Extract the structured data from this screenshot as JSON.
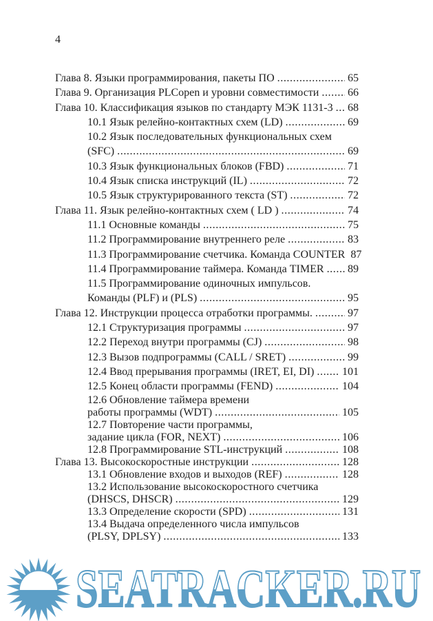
{
  "page": {
    "number": "4"
  },
  "toc": {
    "entries": [
      {
        "title": "Глава 8. Языки программирования, пакеты ПО",
        "page": "65",
        "level": 0
      },
      {
        "title": "Глава 9. Организация PLCopen и уровни совместимости",
        "page": "66",
        "level": 0
      },
      {
        "title": "Глава 10. Классификация языков по стандарту МЭК 1131-3",
        "page": "68",
        "level": 0
      },
      {
        "title": "10.1 Язык релейно-контактных схем (LD)",
        "page": "69",
        "level": 1
      },
      {
        "title": "10.2 Язык последовательных функциональных схем",
        "page": "",
        "level": 1
      },
      {
        "title": "(SFC)",
        "page": "69",
        "level": 1
      },
      {
        "title": "10.3 Язык функциональных блоков (FBD)",
        "page": "71",
        "level": 1
      },
      {
        "title": "10.4 Язык списка инструкций (IL)",
        "page": "72",
        "level": 1
      },
      {
        "title": "10.5 Язык структурированного текста (ST)",
        "page": "72",
        "level": 1
      },
      {
        "title": "Глава 11. Язык релейно-контактных схем ( LD )",
        "page": "74",
        "level": 0
      },
      {
        "title": "11.1 Основные команды",
        "page": "75",
        "level": 1
      },
      {
        "title": "11.2 Программирование внутреннего реле",
        "page": "83",
        "level": 1
      },
      {
        "title": "11.3 Программирование счетчика. Команда COUNTER",
        "page": "87",
        "level": 1
      },
      {
        "title": "11.4 Программирование таймера. Команда TIMER",
        "page": "89",
        "level": 1
      },
      {
        "title": "11.5 Программирование одиночных импульсов.",
        "page": "",
        "level": 1
      },
      {
        "title": "Команды (PLF) и (PLS)",
        "page": "95",
        "level": 1
      },
      {
        "title": "Глава 12. Инструкции процесса отработки программы.",
        "page": "97",
        "level": 0
      },
      {
        "title": "12.1 Структуризация программы",
        "page": "97",
        "level": 1
      },
      {
        "title": "12.2 Переход внутри программы (CJ)",
        "page": "98",
        "level": 1
      },
      {
        "title": "12.3 Вызов подпрограммы (CALL / SRET)",
        "page": "99",
        "level": 1
      },
      {
        "title": "12.4 Ввод прерывания программы (IRET, EI, DI)",
        "page": "101",
        "level": 1
      },
      {
        "title": "12.5 Конец области программы (FEND)",
        "page": "104",
        "level": 1
      },
      {
        "title": "12.6 Обновление таймера времени",
        "page": "",
        "level": 1
      },
      {
        "title": "работы программы (WDT)",
        "page": "105",
        "level": 1
      },
      {
        "title": "12.7 Повторение части программы,",
        "page": "",
        "level": 1
      },
      {
        "title": "задание цикла (FOR, NEXT)",
        "page": "106",
        "level": 1
      },
      {
        "title": "12.8 Программирование STL-инструкций",
        "page": "108",
        "level": 1
      },
      {
        "title": "Глава 13. Высокоскоростные инструкции",
        "page": "128",
        "level": 0
      },
      {
        "title": "13.1 Обновление входов и выходов (REF)",
        "page": "128",
        "level": 1
      },
      {
        "title": "13.2 Использование высокоскоростного счетчика",
        "page": "",
        "level": 1
      },
      {
        "title": "(DHSCS, DHSCR)",
        "page": "129",
        "level": 1
      },
      {
        "title": "13.3 Определение скорости (SPD)",
        "page": "131",
        "level": 1
      },
      {
        "title": "13.4 Выдача определенного числа импульсов",
        "page": "",
        "level": 1
      },
      {
        "title": "(PLSY, DPLSY)",
        "page": "133",
        "level": 1
      }
    ]
  },
  "watermark": {
    "text": "SEATRACKER.RU",
    "color": "#5d9fc7",
    "logo": "sun-icon"
  }
}
